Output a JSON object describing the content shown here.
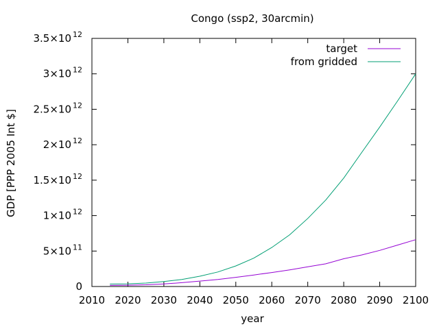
{
  "chart_data": {
    "type": "line",
    "title": "Congo (ssp2, 30arcmin)",
    "xlabel": "year",
    "ylabel": "GDP [PPP 2005 Int $]",
    "xlim": [
      2010,
      2100
    ],
    "ylim": [
      0,
      3500000000000.0
    ],
    "xticks": [
      "2010",
      "2020",
      "2030",
      "2040",
      "2050",
      "2060",
      "2070",
      "2080",
      "2090",
      "2100"
    ],
    "yticks": [
      {
        "value": 0,
        "mant": "0",
        "exp": ""
      },
      {
        "value": 500000000000.0,
        "mant": "5×10",
        "exp": "11"
      },
      {
        "value": 1000000000000.0,
        "mant": "1×10",
        "exp": "12"
      },
      {
        "value": 1500000000000.0,
        "mant": "1.5×10",
        "exp": "12"
      },
      {
        "value": 2000000000000.0,
        "mant": "2×10",
        "exp": "12"
      },
      {
        "value": 2500000000000.0,
        "mant": "2.5×10",
        "exp": "12"
      },
      {
        "value": 3000000000000.0,
        "mant": "3×10",
        "exp": "12"
      },
      {
        "value": 3500000000000.0,
        "mant": "3.5×10",
        "exp": "12"
      }
    ],
    "grid": false,
    "legend_position": "top-right",
    "series": [
      {
        "name": "target",
        "color": "#9400d3",
        "x": [
          2015,
          2020,
          2025,
          2030,
          2035,
          2040,
          2045,
          2050,
          2055,
          2060,
          2065,
          2070,
          2075,
          2080,
          2085,
          2090,
          2095,
          2100
        ],
        "y": [
          15000000000.0,
          18000000000.0,
          24000000000.0,
          36000000000.0,
          54000000000.0,
          76000000000.0,
          100000000000.0,
          130000000000.0,
          162000000000.0,
          197000000000.0,
          235000000000.0,
          278000000000.0,
          320000000000.0,
          392000000000.0,
          445000000000.0,
          510000000000.0,
          585000000000.0,
          660000000000.0
        ]
      },
      {
        "name": "from gridded",
        "color": "#009e73",
        "x": [
          2015,
          2020,
          2025,
          2030,
          2035,
          2040,
          2045,
          2050,
          2055,
          2060,
          2065,
          2070,
          2075,
          2080,
          2085,
          2090,
          2095,
          2100
        ],
        "y": [
          35000000000.0,
          38000000000.0,
          48000000000.0,
          70000000000.0,
          100000000000.0,
          145000000000.0,
          205000000000.0,
          290000000000.0,
          400000000000.0,
          550000000000.0,
          730000000000.0,
          960000000000.0,
          1220000000000.0,
          1530000000000.0,
          1890000000000.0,
          2250000000000.0,
          2620000000000.0,
          3000000000000.0
        ]
      }
    ]
  }
}
